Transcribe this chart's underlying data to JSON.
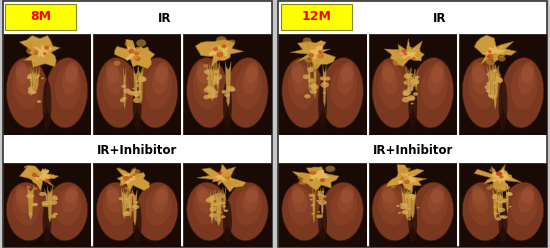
{
  "fig_width": 5.5,
  "fig_height": 2.48,
  "dpi": 100,
  "background_color": "#c8c8c8",
  "panel_bg": "#ffffff",
  "left_label": "8M",
  "right_label": "12M",
  "label_bg": "#ffff00",
  "label_color": "#ff0000",
  "label_fontsize": 9,
  "top_group_label": "IR",
  "bottom_group_label": "IR+Inhibitor",
  "group_label_fontsize": 8.5,
  "lung_dark": "#6b3020",
  "lung_mid": "#7d3c22",
  "lung_light": "#9b5030",
  "lung_sheen": "#a05830",
  "fibrosis_main": "#d4a855",
  "fibrosis_light": "#e8c878",
  "fibrosis_dark": "#b8860b",
  "bg_dark": "#1a0a05",
  "panel_border": "#333333"
}
